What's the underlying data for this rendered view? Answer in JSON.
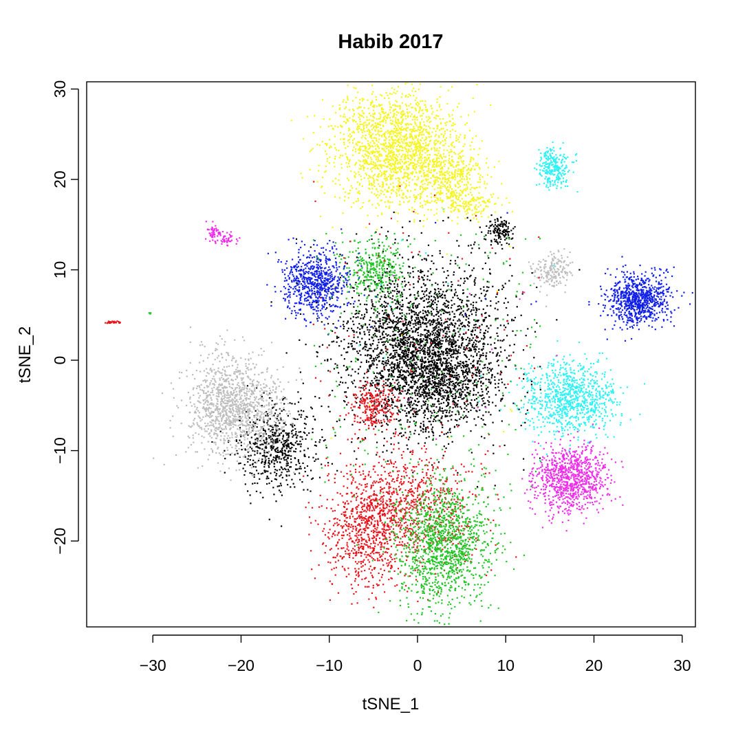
{
  "chart_data": {
    "type": "scatter",
    "title": "Habib 2017",
    "xlabel": "tSNE_1",
    "ylabel": "tSNE_2",
    "xlim": [
      -37.5,
      31.5
    ],
    "ylim": [
      -29.5,
      30.8
    ],
    "xticks": [
      -30,
      -20,
      -10,
      0,
      10,
      20,
      30
    ],
    "xtick_labels": [
      "−30",
      "−20",
      "−10",
      "0",
      "10",
      "20",
      "30"
    ],
    "yticks": [
      -20,
      -10,
      0,
      10,
      20,
      30
    ],
    "ytick_labels": [
      "−20",
      "−10",
      "0",
      "10",
      "20",
      "30"
    ],
    "grid": false,
    "legend": "none",
    "colors": {
      "black": "#000000",
      "red": "#e8141c",
      "green": "#22c425",
      "blue": "#1020e8",
      "cyan": "#2ef2f5",
      "magenta": "#ee2ee8",
      "yellow": "#f7f51e",
      "gray": "#bdbdbd"
    },
    "clusters": [
      {
        "color": "yellow",
        "center": [
          -2.5,
          23.5
        ],
        "spread": [
          3.6,
          3.0
        ],
        "n": 1700
      },
      {
        "color": "yellow",
        "center": [
          3.5,
          20.0
        ],
        "spread": [
          2.3,
          2.0
        ],
        "n": 450
      },
      {
        "color": "yellow",
        "center": [
          6.0,
          17.2
        ],
        "spread": [
          1.6,
          0.8
        ],
        "n": 110
      },
      {
        "color": "black",
        "center": [
          0.5,
          1.5
        ],
        "spread": [
          4.6,
          4.4
        ],
        "n": 2800
      },
      {
        "color": "black",
        "center": [
          3.5,
          -3.0
        ],
        "spread": [
          3.0,
          2.5
        ],
        "n": 500
      },
      {
        "color": "black",
        "center": [
          -16.0,
          -9.5
        ],
        "spread": [
          2.2,
          2.5
        ],
        "n": 600
      },
      {
        "color": "black",
        "center": [
          9.3,
          14.3
        ],
        "spread": [
          0.7,
          0.7
        ],
        "n": 130
      },
      {
        "color": "red",
        "center": [
          -1.0,
          -16.0
        ],
        "spread": [
          3.8,
          3.2
        ],
        "n": 850
      },
      {
        "color": "red",
        "center": [
          -6.0,
          -19.5
        ],
        "spread": [
          2.2,
          3.2
        ],
        "n": 600
      },
      {
        "color": "red",
        "center": [
          -5.0,
          -5.0
        ],
        "spread": [
          1.3,
          1.4
        ],
        "n": 250
      },
      {
        "color": "red",
        "center": [
          -34.5,
          4.2
        ],
        "spread": [
          0.5,
          0.08
        ],
        "n": 30
      },
      {
        "color": "green",
        "center": [
          3.0,
          -20.5
        ],
        "spread": [
          2.7,
          3.6
        ],
        "n": 1300
      },
      {
        "color": "green",
        "center": [
          -5.0,
          10.0
        ],
        "spread": [
          1.8,
          1.8
        ],
        "n": 330
      },
      {
        "color": "green",
        "center": [
          -30.3,
          5.2
        ],
        "spread": [
          0.1,
          0.05
        ],
        "n": 4
      },
      {
        "color": "blue",
        "center": [
          -11.5,
          8.5
        ],
        "spread": [
          1.8,
          1.9
        ],
        "n": 700
      },
      {
        "color": "blue",
        "center": [
          25.0,
          6.8
        ],
        "spread": [
          1.8,
          1.4
        ],
        "n": 800
      },
      {
        "color": "cyan",
        "center": [
          17.3,
          -4.3
        ],
        "spread": [
          2.6,
          2.1
        ],
        "n": 900
      },
      {
        "color": "cyan",
        "center": [
          15.5,
          21.3
        ],
        "spread": [
          1.0,
          1.1
        ],
        "n": 260
      },
      {
        "color": "magenta",
        "center": [
          17.3,
          -13.0
        ],
        "spread": [
          2.0,
          1.8
        ],
        "n": 900
      },
      {
        "color": "magenta",
        "center": [
          -23.0,
          14.0
        ],
        "spread": [
          0.5,
          0.5
        ],
        "n": 60
      },
      {
        "color": "magenta",
        "center": [
          -21.5,
          13.3
        ],
        "spread": [
          0.6,
          0.35
        ],
        "n": 35
      },
      {
        "color": "gray",
        "center": [
          -21.0,
          -5.0
        ],
        "spread": [
          2.7,
          2.8
        ],
        "n": 1200
      },
      {
        "color": "gray",
        "center": [
          15.2,
          9.8
        ],
        "spread": [
          1.1,
          1.1
        ],
        "n": 180
      }
    ],
    "scattered": [
      {
        "color": "green",
        "n": 200,
        "xrange": [
          -12,
          14
        ],
        "yrange": [
          -14,
          14
        ]
      },
      {
        "color": "red",
        "n": 90,
        "xrange": [
          -12,
          14
        ],
        "yrange": [
          -14,
          20
        ]
      },
      {
        "color": "black",
        "n": 60,
        "xrange": [
          -14,
          14
        ],
        "yrange": [
          -14,
          14
        ]
      },
      {
        "color": "yellow",
        "n": 15,
        "xrange": [
          -10,
          14
        ],
        "yrange": [
          -10,
          20
        ]
      },
      {
        "color": "cyan",
        "n": 12,
        "xrange": [
          -8,
          16
        ],
        "yrange": [
          -8,
          18
        ]
      },
      {
        "color": "magenta",
        "n": 10,
        "xrange": [
          -8,
          16
        ],
        "yrange": [
          -10,
          10
        ]
      },
      {
        "color": "blue",
        "n": 8,
        "xrange": [
          -8,
          14
        ],
        "yrange": [
          -6,
          18
        ]
      }
    ]
  }
}
